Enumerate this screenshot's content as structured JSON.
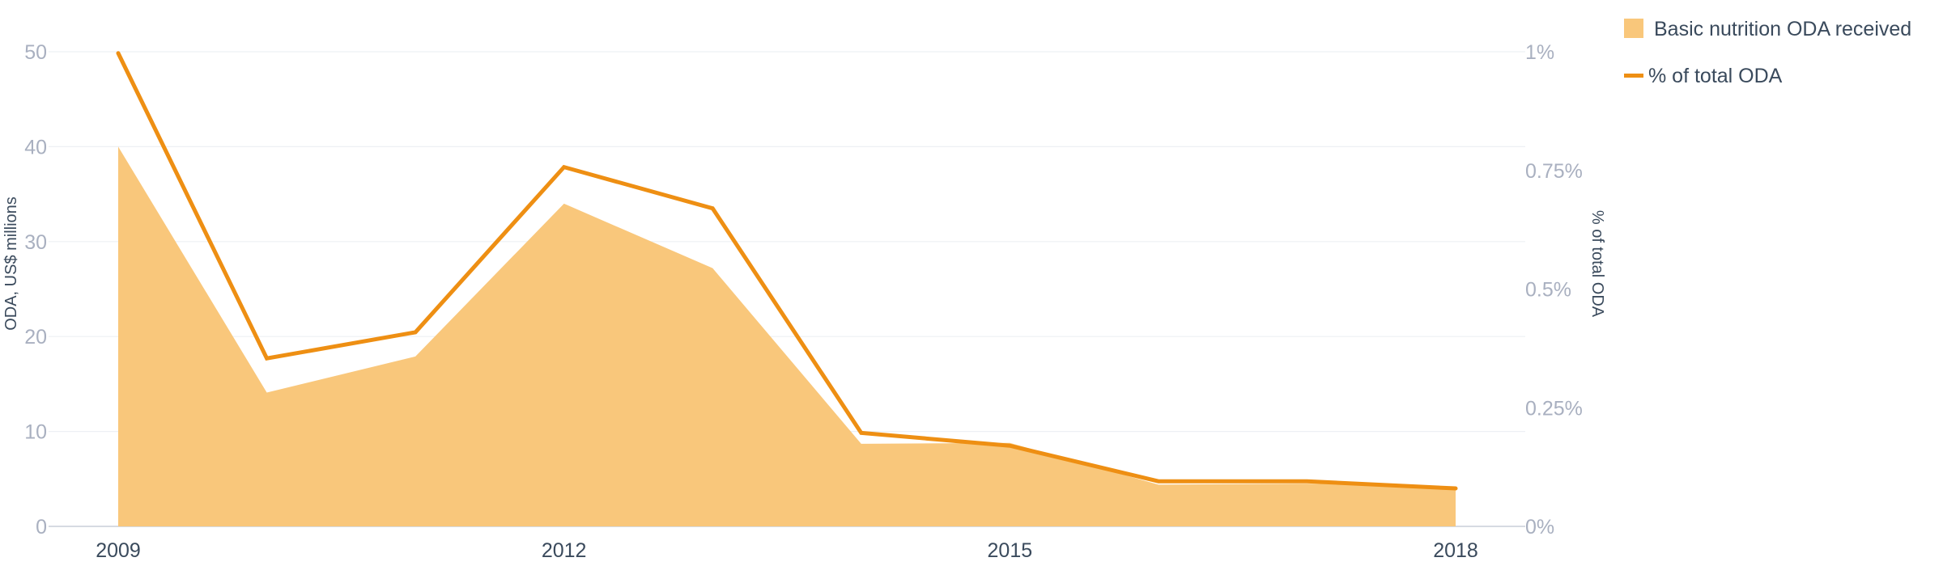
{
  "chart_data": {
    "type": "area+line",
    "x": [
      2009,
      2010,
      2011,
      2012,
      2013,
      2014,
      2015,
      2016,
      2017,
      2018
    ],
    "x_tick_labels": [
      "2009",
      "2012",
      "2015",
      "2018"
    ],
    "x_tick_values": [
      2009,
      2012,
      2015,
      2018
    ],
    "series": [
      {
        "name": "Basic nutrition ODA received",
        "kind": "area",
        "axis": "left",
        "color": "#f9c77b",
        "values": [
          40,
          14.1,
          17.9,
          34,
          27.2,
          8.7,
          8.8,
          4.4,
          4.5,
          4.2
        ]
      },
      {
        "name": "% of total ODA",
        "kind": "line",
        "axis": "right",
        "color": "#ee8f13",
        "values": [
          0.997,
          0.354,
          0.409,
          0.757,
          0.67,
          0.197,
          0.17,
          0.095,
          0.095,
          0.08
        ]
      }
    ],
    "y_left": {
      "label": "ODA, US$ millions",
      "ylim": [
        0,
        50
      ],
      "ticks": [
        0,
        10,
        20,
        30,
        40,
        50
      ],
      "tick_labels": [
        "0",
        "10",
        "20",
        "30",
        "40",
        "50"
      ]
    },
    "y_right": {
      "label": "% of total ODA",
      "ylim": [
        0,
        1
      ],
      "ticks": [
        0,
        0.25,
        0.5,
        0.75,
        1
      ],
      "tick_labels": [
        "0%",
        "0.25%",
        "0.5%",
        "0.75%",
        "1%"
      ]
    },
    "grid": true,
    "gridlines": "horizontal",
    "legend_position": "top-right",
    "grid_color": "#edf0f4"
  }
}
